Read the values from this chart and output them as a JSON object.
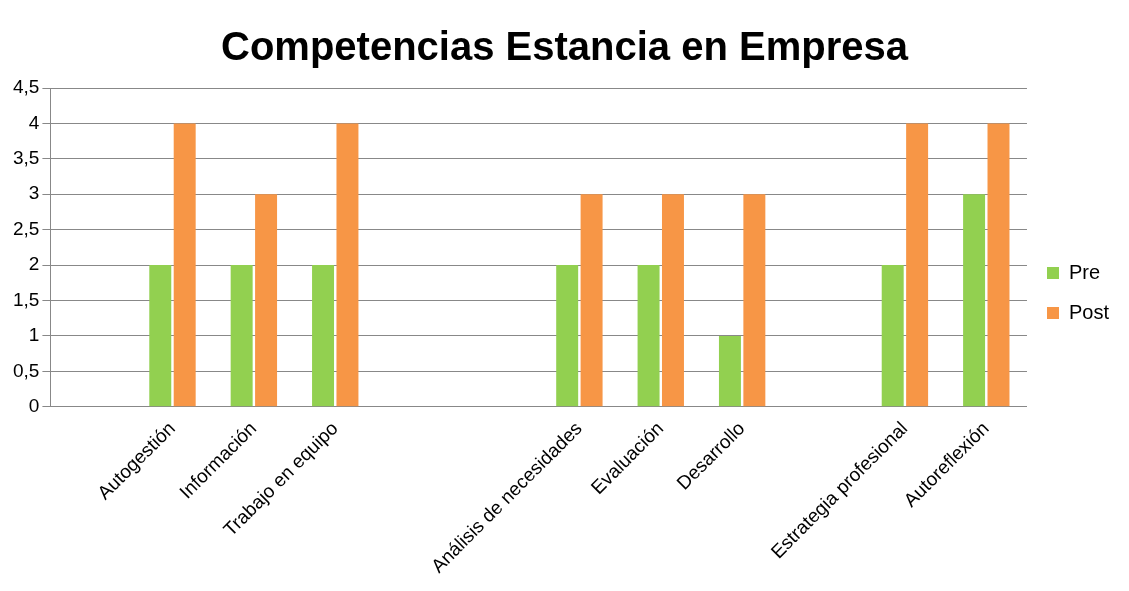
{
  "chart_data": {
    "type": "bar",
    "title": "Competencias Estancia en Empresa",
    "categories": [
      null,
      "Autogestión",
      "Información",
      "Trabajo en equipo",
      null,
      null,
      "Análisis de necesidades",
      "Evaluación",
      "Desarrollo",
      null,
      "Estrategia profesional",
      "Autoreflexión"
    ],
    "series": [
      {
        "name": "Pre",
        "color": "#92d050",
        "values": [
          null,
          2,
          2,
          2,
          null,
          null,
          2,
          2,
          1,
          null,
          2,
          3
        ]
      },
      {
        "name": "Post",
        "color": "#f79646",
        "values": [
          null,
          4,
          3,
          4,
          null,
          null,
          3,
          3,
          3,
          null,
          4,
          4
        ]
      }
    ],
    "ylim": [
      0,
      4.5
    ],
    "yticks": [
      0,
      {
        "value": 0.5,
        "label": "0,5"
      },
      1,
      {
        "value": 1.5,
        "label": "1,5"
      },
      2,
      {
        "value": 2.5,
        "label": "2,5"
      },
      3,
      {
        "value": 3.5,
        "label": "3,5"
      },
      4,
      {
        "value": 4.5,
        "label": "4,5"
      }
    ],
    "grid": "y",
    "legend": "right"
  }
}
